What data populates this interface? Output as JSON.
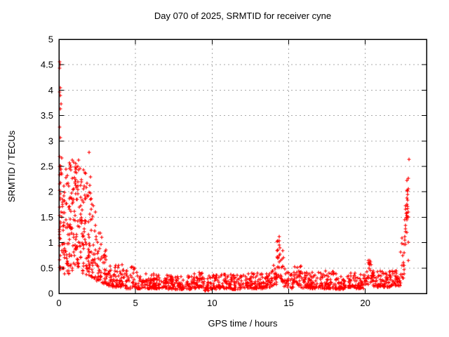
{
  "window": {
    "title": "Day 070 of 2025, SRMTID for receiver cyne"
  },
  "chart_data": {
    "type": "scatter",
    "title": "Day 070 of 2025, SRMTID for receiver cyne",
    "xlabel": "GPS time / hours",
    "ylabel": "SRMTID / TECUs",
    "xlim": [
      0,
      24
    ],
    "ylim": [
      0,
      5
    ],
    "xticks": [
      0,
      5,
      10,
      15,
      20
    ],
    "yticks": [
      0,
      0.5,
      1,
      1.5,
      2,
      2.5,
      3,
      3.5,
      4,
      4.5,
      5
    ],
    "grid": true,
    "legend": "none",
    "marker": "plus",
    "marker_size": 2.5,
    "colors": {
      "points": "#ff0000",
      "grid": "#a9a9a9",
      "axis": "#000000",
      "background": "#ffffff"
    },
    "seed": 2025070,
    "description": "Dense red scatter: values ~0.9-4.6 TECU in first 3 h decaying to a ~0.1-0.4 baseline, narrow spike to ~1.15 near 14.4 h, small bumps near 15.5 h and 20.2 h, sharp rise to ~2.65 near 22.8 h; no data after ~23 h.",
    "points_outliers": [
      [
        0.04,
        4.56
      ],
      [
        0.08,
        4.5
      ],
      [
        0.05,
        4.43
      ],
      [
        0.1,
        4.05
      ],
      [
        0.04,
        3.96
      ],
      [
        0.09,
        3.89
      ],
      [
        0.13,
        3.73
      ],
      [
        0.1,
        3.63
      ],
      [
        0.05,
        3.27
      ],
      [
        0.11,
        3.06
      ],
      [
        0.04,
        2.7
      ],
      [
        0.08,
        2.52
      ],
      [
        0.05,
        2.34
      ],
      [
        0.1,
        2.18
      ],
      [
        0.04,
        2.03
      ],
      [
        0.09,
        1.88
      ],
      [
        0.06,
        1.7
      ],
      [
        0.03,
        1.54
      ],
      [
        0.08,
        1.38
      ],
      [
        0.05,
        1.22
      ],
      [
        0.1,
        1.08
      ],
      [
        0.04,
        0.94
      ],
      [
        0.07,
        0.75
      ],
      [
        0.2,
        2.66
      ],
      [
        0.87,
        2.62
      ],
      [
        1.3,
        2.63
      ],
      [
        1.1,
        2.55
      ],
      [
        1.95,
        2.77
      ],
      [
        22.85,
        2.64
      ]
    ],
    "point_clusters": [
      {
        "x0": 0.03,
        "x1": 0.35,
        "n": 40,
        "ylo": 0.4,
        "yhi": 2.55,
        "bias": 1.25
      },
      {
        "x0": 0.35,
        "x1": 0.7,
        "n": 44,
        "ylo": 0.35,
        "yhi": 2.6,
        "bias": 1.25
      },
      {
        "x0": 0.7,
        "x1": 1.05,
        "n": 46,
        "ylo": 0.45,
        "yhi": 2.6,
        "bias": 1.3
      },
      {
        "x0": 1.05,
        "x1": 1.4,
        "n": 46,
        "ylo": 0.5,
        "yhi": 2.5,
        "bias": 1.3
      },
      {
        "x0": 1.4,
        "x1": 1.75,
        "n": 42,
        "ylo": 0.4,
        "yhi": 2.45,
        "bias": 1.35
      },
      {
        "x0": 1.75,
        "x1": 2.1,
        "n": 40,
        "ylo": 0.35,
        "yhi": 2.3,
        "bias": 1.5
      },
      {
        "x0": 2.1,
        "x1": 2.45,
        "n": 34,
        "ylo": 0.3,
        "yhi": 1.9,
        "bias": 1.7
      },
      {
        "x0": 2.45,
        "x1": 2.8,
        "n": 30,
        "ylo": 0.25,
        "yhi": 1.25,
        "bias": 1.7
      },
      {
        "x0": 2.8,
        "x1": 3.1,
        "n": 24,
        "ylo": 0.2,
        "yhi": 0.95,
        "bias": 1.7
      },
      {
        "x0": 3.1,
        "x1": 3.5,
        "n": 26,
        "ylo": 0.15,
        "yhi": 0.7,
        "bias": 1.8
      },
      {
        "x0": 3.5,
        "x1": 3.9,
        "n": 26,
        "ylo": 0.12,
        "yhi": 0.55,
        "bias": 1.8
      },
      {
        "x0": 3.9,
        "x1": 4.1,
        "n": 14,
        "ylo": 0.12,
        "yhi": 0.5,
        "bias": 1.8
      },
      {
        "x0": 4.1,
        "x1": 4.35,
        "n": 14,
        "ylo": 0.12,
        "yhi": 0.62,
        "bias": 1.6
      },
      {
        "x0": 4.35,
        "x1": 4.7,
        "n": 20,
        "ylo": 0.1,
        "yhi": 0.45,
        "bias": 1.9
      },
      {
        "x0": 4.7,
        "x1": 4.95,
        "n": 14,
        "ylo": 0.12,
        "yhi": 0.58,
        "bias": 1.6
      },
      {
        "x0": 4.95,
        "x1": 5.4,
        "n": 26,
        "ylo": 0.1,
        "yhi": 0.42,
        "bias": 2.0
      },
      {
        "x0": 5.4,
        "x1": 6.2,
        "n": 50,
        "ylo": 0.1,
        "yhi": 0.4,
        "bias": 2.0
      },
      {
        "x0": 6.2,
        "x1": 7.0,
        "n": 50,
        "ylo": 0.1,
        "yhi": 0.38,
        "bias": 2.1
      },
      {
        "x0": 7.0,
        "x1": 7.8,
        "n": 50,
        "ylo": 0.08,
        "yhi": 0.36,
        "bias": 2.1
      },
      {
        "x0": 7.8,
        "x1": 8.6,
        "n": 50,
        "ylo": 0.08,
        "yhi": 0.38,
        "bias": 2.1
      },
      {
        "x0": 8.6,
        "x1": 9.2,
        "n": 38,
        "ylo": 0.1,
        "yhi": 0.42,
        "bias": 1.9
      },
      {
        "x0": 9.2,
        "x1": 9.45,
        "n": 16,
        "ylo": 0.12,
        "yhi": 0.42,
        "bias": 1.7
      },
      {
        "x0": 9.45,
        "x1": 9.8,
        "n": 20,
        "ylo": 0.06,
        "yhi": 0.3,
        "bias": 2.1
      },
      {
        "x0": 9.8,
        "x1": 10.4,
        "n": 36,
        "ylo": 0.08,
        "yhi": 0.36,
        "bias": 2.0
      },
      {
        "x0": 10.4,
        "x1": 11.2,
        "n": 50,
        "ylo": 0.1,
        "yhi": 0.38,
        "bias": 2.0
      },
      {
        "x0": 11.2,
        "x1": 12.0,
        "n": 50,
        "ylo": 0.08,
        "yhi": 0.38,
        "bias": 2.1
      },
      {
        "x0": 12.0,
        "x1": 12.8,
        "n": 50,
        "ylo": 0.1,
        "yhi": 0.4,
        "bias": 2.0
      },
      {
        "x0": 12.8,
        "x1": 13.6,
        "n": 50,
        "ylo": 0.1,
        "yhi": 0.42,
        "bias": 1.9
      },
      {
        "x0": 13.6,
        "x1": 14.0,
        "n": 24,
        "ylo": 0.12,
        "yhi": 0.45,
        "bias": 1.8
      },
      {
        "x0": 14.0,
        "x1": 14.2,
        "n": 14,
        "ylo": 0.15,
        "yhi": 0.6,
        "bias": 1.5
      },
      {
        "x0": 14.2,
        "x1": 14.45,
        "n": 22,
        "ylo": 0.3,
        "yhi": 1.12,
        "bias": 1.15
      },
      {
        "x0": 14.45,
        "x1": 14.7,
        "n": 16,
        "ylo": 0.2,
        "yhi": 0.85,
        "bias": 1.4
      },
      {
        "x0": 14.7,
        "x1": 15.05,
        "n": 20,
        "ylo": 0.12,
        "yhi": 0.5,
        "bias": 1.7
      },
      {
        "x0": 15.05,
        "x1": 15.3,
        "n": 14,
        "ylo": 0.1,
        "yhi": 0.4,
        "bias": 1.8
      },
      {
        "x0": 15.3,
        "x1": 15.8,
        "n": 30,
        "ylo": 0.15,
        "yhi": 0.58,
        "bias": 1.5
      },
      {
        "x0": 15.8,
        "x1": 16.4,
        "n": 36,
        "ylo": 0.1,
        "yhi": 0.42,
        "bias": 1.9
      },
      {
        "x0": 16.4,
        "x1": 17.2,
        "n": 50,
        "ylo": 0.1,
        "yhi": 0.42,
        "bias": 1.9
      },
      {
        "x0": 17.2,
        "x1": 18.0,
        "n": 50,
        "ylo": 0.1,
        "yhi": 0.45,
        "bias": 1.8
      },
      {
        "x0": 18.0,
        "x1": 18.8,
        "n": 50,
        "ylo": 0.08,
        "yhi": 0.4,
        "bias": 2.0
      },
      {
        "x0": 18.8,
        "x1": 19.4,
        "n": 38,
        "ylo": 0.12,
        "yhi": 0.45,
        "bias": 1.8
      },
      {
        "x0": 19.4,
        "x1": 19.9,
        "n": 30,
        "ylo": 0.1,
        "yhi": 0.4,
        "bias": 1.9
      },
      {
        "x0": 19.9,
        "x1": 20.45,
        "n": 34,
        "ylo": 0.18,
        "yhi": 0.68,
        "bias": 1.5
      },
      {
        "x0": 20.45,
        "x1": 21.0,
        "n": 34,
        "ylo": 0.12,
        "yhi": 0.45,
        "bias": 1.8
      },
      {
        "x0": 21.0,
        "x1": 21.7,
        "n": 44,
        "ylo": 0.12,
        "yhi": 0.45,
        "bias": 1.8
      },
      {
        "x0": 21.7,
        "x1": 22.3,
        "n": 40,
        "ylo": 0.15,
        "yhi": 0.5,
        "bias": 1.6
      },
      {
        "x0": 22.3,
        "x1": 22.55,
        "n": 16,
        "ylo": 0.3,
        "yhi": 1.15,
        "bias": 1.3
      },
      {
        "x0": 22.55,
        "x1": 22.8,
        "n": 20,
        "ylo": 0.45,
        "yhi": 2.1,
        "bias": 1.1
      },
      {
        "x0": 22.7,
        "x1": 22.92,
        "n": 12,
        "ylo": 1.3,
        "yhi": 2.35,
        "bias": 1.0
      }
    ]
  }
}
